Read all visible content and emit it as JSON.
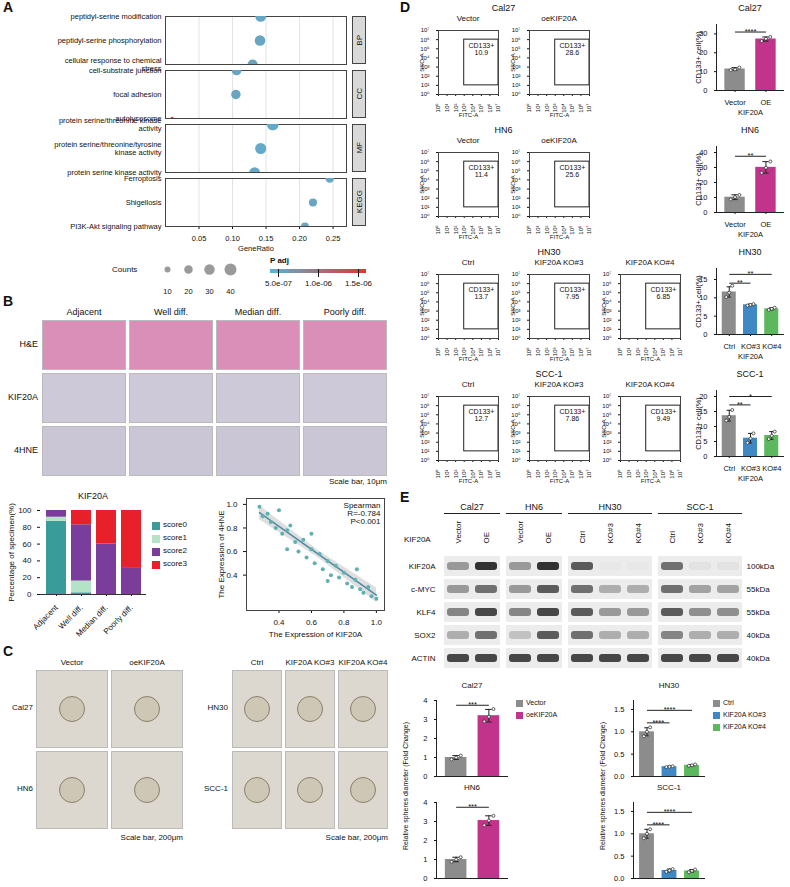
{
  "panel_labels": [
    "A",
    "B",
    "C",
    "D",
    "E"
  ],
  "chart_data": [
    {
      "type": "scatter",
      "xlabel": "GeneRatio",
      "xlim": [
        0,
        0.27
      ],
      "xticks": [
        0.05,
        {
          "value": 0.1,
          "label": "0.10"
        },
        0.15,
        {
          "value": 0.2,
          "label": "0.20"
        },
        0.25
      ],
      "grid": true,
      "groups": [
        {
          "name": "BP",
          "categories": [
            "peptidyl-serine modification",
            "peptidyl-serine phosphorylation",
            "cellular response to chemical stress"
          ],
          "values": [
            0.142,
            0.141,
            0.13
          ],
          "counts": [
            32,
            31,
            29
          ],
          "p_adj": [
            5.2e-07,
            5.3e-07,
            5.6e-07
          ]
        },
        {
          "name": "CC",
          "categories": [
            "cell-substrate junction",
            "focal adhesion",
            "autolysosome"
          ],
          "values": [
            0.106,
            0.105,
            0.01
          ],
          "counts": [
            26,
            25,
            3
          ],
          "p_adj": [
            5.4e-07,
            5.5e-07,
            1.5e-06
          ]
        },
        {
          "name": "MF",
          "categories": [
            "protein serine/threonine kinase activity",
            "protein serine/threonine/tyrosine kinase activity",
            "protein serine kinase activity"
          ],
          "values": [
            0.16,
            0.142,
            0.133
          ],
          "counts": [
            38,
            34,
            32
          ],
          "p_adj": [
            5e-07,
            5e-07,
            5.1e-07
          ]
        },
        {
          "name": "KEGG",
          "categories": [
            "Ferroptosis",
            "Shigellosis",
            "PI3K-Akt signaling pathway"
          ],
          "values": [
            0.245,
            0.22,
            0.208
          ],
          "counts": [
            20,
            18,
            17
          ],
          "p_adj": [
            5.2e-07,
            5.4e-07,
            5.8e-07
          ]
        }
      ],
      "size_legend": {
        "title": "Counts",
        "values": [
          10,
          20,
          30,
          40
        ]
      },
      "color_legend": {
        "title": "P adj",
        "lim": [
          4e-07,
          1.6e-06
        ],
        "colors": [
          "#58b4d6",
          "#e5352b"
        ],
        "ticks": [
          {
            "value": 5e-07,
            "label": "5.0e-07"
          },
          {
            "value": 1e-06,
            "label": "1.0e-06"
          },
          {
            "value": 1.5e-06,
            "label": "1.5e-06"
          }
        ]
      }
    },
    {
      "type": "bar",
      "stacked": true,
      "title": "KIF20A",
      "ylabel": "Percentage of specimen(%)",
      "categories": [
        "Adjacent",
        "Well diff.",
        "Median diff.",
        "Poorly diff."
      ],
      "series": [
        {
          "name": "score0",
          "color": "#3a9b9b",
          "values": [
            87,
            2,
            0,
            0
          ]
        },
        {
          "name": "score1",
          "color": "#b5e3c8",
          "values": [
            5,
            14,
            0,
            0
          ]
        },
        {
          "name": "score2",
          "color": "#7a3d9c",
          "values": [
            8,
            67,
            60,
            32
          ]
        },
        {
          "name": "score3",
          "color": "#e8202a",
          "values": [
            0,
            17,
            40,
            68
          ]
        }
      ],
      "ylim": [
        0,
        100
      ],
      "yticks": [
        0,
        20,
        40,
        60,
        80,
        100
      ],
      "legend": "right"
    },
    {
      "type": "scatter",
      "xlabel": "The Expression of KIF20A",
      "ylabel": "The Expression of 4HNE",
      "annotation": [
        "Spearman",
        "R=-0.784",
        "P<0.001"
      ],
      "color": "#5fb0b0",
      "x": [
        0.28,
        0.3,
        0.33,
        0.35,
        0.38,
        0.4,
        0.42,
        0.45,
        0.47,
        0.5,
        0.52,
        0.55,
        0.57,
        0.6,
        0.62,
        0.65,
        0.67,
        0.7,
        0.72,
        0.75,
        0.77,
        0.8,
        0.82,
        0.85,
        0.87,
        0.9,
        0.92,
        0.95,
        0.97,
        1.0,
        0.6,
        0.7,
        0.45,
        0.88
      ],
      "y": [
        0.98,
        0.9,
        0.92,
        0.85,
        0.8,
        0.95,
        0.75,
        0.78,
        0.82,
        0.68,
        0.6,
        0.7,
        0.55,
        0.62,
        0.5,
        0.58,
        0.45,
        0.52,
        0.4,
        0.48,
        0.38,
        0.42,
        0.33,
        0.3,
        0.36,
        0.28,
        0.25,
        0.3,
        0.22,
        0.2,
        0.75,
        0.35,
        0.62,
        0.45
      ],
      "fit": {
        "x": [
          0.28,
          0.64,
          1.0
        ],
        "y": [
          0.93,
          0.58,
          0.23
        ],
        "lower": [
          0.87,
          0.55,
          0.17
        ],
        "upper": [
          0.99,
          0.61,
          0.29
        ]
      },
      "xlim": [
        0.2,
        1.05
      ],
      "xticks": [
        0.4,
        0.6,
        0.8,
        {
          "value": 1,
          "label": "1.0"
        }
      ],
      "ylim": [
        0.1,
        1.05
      ],
      "yticks": [
        0.4,
        0.6,
        0.8,
        {
          "value": 1,
          "label": "1.0"
        }
      ]
    },
    {
      "type": "bar",
      "title": "Cal27",
      "ylabel": "Relative spheres diameter (Fold Change)",
      "categories": [
        "Vector",
        "oeKIF20A"
      ],
      "colors": [
        "#8c8c8c",
        "#c2338c"
      ],
      "values": [
        1.0,
        3.2
      ],
      "errors": [
        0.1,
        0.33
      ],
      "points": [
        [
          0.9,
          1.0,
          1.1
        ],
        [
          2.9,
          3.15,
          3.55
        ]
      ],
      "ylim": [
        0,
        4
      ],
      "yticks": [
        0,
        1,
        2,
        3,
        4
      ],
      "annotations": [
        {
          "from": 0,
          "to": 1,
          "y": 3.75,
          "label": "***"
        }
      ],
      "legend": "right",
      "tick_labels": "y"
    },
    {
      "type": "bar",
      "title": "HN6",
      "categories": [
        null,
        null
      ],
      "colors": [
        "#8c8c8c",
        "#c2338c"
      ],
      "values": [
        1.0,
        3.05
      ],
      "errors": [
        0.12,
        0.25
      ],
      "points": [
        [
          0.88,
          1.0,
          1.12
        ],
        [
          2.8,
          3.05,
          3.3
        ]
      ],
      "ylim": [
        0,
        4
      ],
      "yticks": [
        0,
        1,
        2,
        3,
        4
      ],
      "annotations": [
        {
          "from": 0,
          "to": 1,
          "y": 3.75,
          "label": "***"
        }
      ],
      "tick_labels": "y"
    },
    {
      "type": "bar",
      "title": "HN30",
      "ylabel": "Relative spheres diameter (Fold Change)",
      "categories": [
        "Ctrl",
        "KIF20A KO#3",
        "KIF20A KO#4"
      ],
      "colors": [
        "#8c8c8c",
        "#3f88c5",
        "#5cb85c"
      ],
      "values": [
        1.0,
        0.22,
        0.25
      ],
      "errors": [
        0.09,
        0.01,
        0.015
      ],
      "points": [
        [
          0.9,
          1.0,
          1.1
        ],
        [
          0.21,
          0.22,
          0.23
        ],
        [
          0.24,
          0.25,
          0.27
        ]
      ],
      "ylim": [
        0,
        1.7
      ],
      "yticks": [
        {
          "value": 0,
          "label": "0.0"
        },
        0.5,
        {
          "value": 1,
          "label": "1.0"
        },
        1.5
      ],
      "annotations": [
        {
          "from": 0,
          "to": 1,
          "y": 1.2,
          "label": "****"
        },
        {
          "from": 0,
          "to": 2,
          "y": 1.48,
          "label": "****"
        }
      ],
      "legend": "right",
      "tick_labels": "y"
    },
    {
      "type": "bar",
      "title": "SCC-1",
      "categories": [
        null,
        null,
        null
      ],
      "colors": [
        "#8c8c8c",
        "#3f88c5",
        "#5cb85c"
      ],
      "values": [
        1.0,
        0.18,
        0.17
      ],
      "errors": [
        0.1,
        0.03,
        0.03
      ],
      "points": [
        [
          0.9,
          1.0,
          1.1
        ],
        [
          0.15,
          0.18,
          0.21
        ],
        [
          0.14,
          0.17,
          0.2
        ]
      ],
      "ylim": [
        0,
        1.7
      ],
      "yticks": [
        {
          "value": 0,
          "label": "0.0"
        },
        0.5,
        {
          "value": 1,
          "label": "1.0"
        },
        1.5
      ],
      "annotations": [
        {
          "from": 0,
          "to": 1,
          "y": 1.2,
          "label": "****"
        },
        {
          "from": 0,
          "to": 2,
          "y": 1.48,
          "label": "****"
        }
      ],
      "tick_labels": "y"
    },
    {
      "type": "bar",
      "title": "Cal27",
      "ylabel": "CD133+ cell(%)",
      "xlabel": "KIF20A",
      "categories": [
        "Vector",
        "OE"
      ],
      "colors": [
        "#8c8c8c",
        "#c2338c"
      ],
      "values": [
        11.4,
        27.3
      ],
      "errors": [
        0.7,
        1.1
      ],
      "points": [
        [
          10.8,
          11.2,
          12.2
        ],
        [
          26.2,
          27.4,
          28.4
        ]
      ],
      "ylim": [
        0,
        35
      ],
      "yticks": [
        0,
        10,
        20,
        30
      ],
      "annotations": [
        {
          "from": 0,
          "to": 1,
          "y": 31,
          "label": "****"
        }
      ]
    },
    {
      "type": "bar",
      "title": "HN6",
      "ylabel": "CD133+ cell(%)",
      "xlabel": "KIF20A",
      "categories": [
        "Vector",
        "OE"
      ],
      "colors": [
        "#8c8c8c",
        "#c2338c"
      ],
      "values": [
        10.2,
        30.1
      ],
      "errors": [
        1.6,
        3.8
      ],
      "points": [
        [
          8.7,
          10.3,
          11.7
        ],
        [
          26.5,
          29.8,
          34.0
        ]
      ],
      "ylim": [
        0,
        44
      ],
      "yticks": [
        0,
        10,
        20,
        30,
        40
      ],
      "annotations": [
        {
          "from": 0,
          "to": 1,
          "y": 37.5,
          "label": "**"
        }
      ]
    },
    {
      "type": "bar",
      "title": "HN30",
      "ylabel": "CD133+ cell(%)",
      "xlabel": "KIF20A",
      "categories": [
        "Ctrl",
        "KO#3",
        "KO#4"
      ],
      "colors": [
        "#8c8c8c",
        "#3f88c5",
        "#5cb85c"
      ],
      "values": [
        11.6,
        8.1,
        7.0
      ],
      "errors": [
        1.4,
        0.2,
        0.3
      ],
      "points": [
        [
          10.2,
          11.4,
          13.3
        ],
        [
          7.9,
          8.1,
          8.3
        ],
        [
          6.7,
          7.0,
          7.3
        ]
      ],
      "ylim": [
        0,
        18
      ],
      "yticks": [
        0,
        5,
        10,
        15
      ],
      "annotations": [
        {
          "from": 0,
          "to": 1,
          "y": 14,
          "label": "**"
        },
        {
          "from": 0,
          "to": 2,
          "y": 16.4,
          "label": "**"
        }
      ]
    },
    {
      "type": "bar",
      "title": "SCC-1",
      "ylabel": "CD133+ cell(%)",
      "xlabel": "KIF20A",
      "categories": [
        "Ctrl",
        "KO#3",
        "KO#4"
      ],
      "colors": [
        "#8c8c8c",
        "#3f88c5",
        "#5cb85c"
      ],
      "values": [
        13.6,
        6.1,
        7.0
      ],
      "errors": [
        1.8,
        1.6,
        1.3
      ],
      "points": [
        [
          12.0,
          13.2,
          15.5
        ],
        [
          4.6,
          6.0,
          7.7
        ],
        [
          5.8,
          6.9,
          8.3
        ]
      ],
      "ylim": [
        0,
        22
      ],
      "yticks": [
        0,
        5,
        10,
        15,
        20
      ],
      "annotations": [
        {
          "from": 0,
          "to": 1,
          "y": 17.2,
          "label": "**"
        },
        {
          "from": 0,
          "to": 2,
          "y": 20,
          "label": "*"
        }
      ]
    }
  ],
  "flow": {
    "type": "scatter",
    "log": true,
    "xlabel": "FITC-A",
    "ylabel": "SSC-A",
    "gate_label": "CD133+",
    "xlim": [
      1,
      10000000
    ],
    "ylim": [
      1,
      10000000
    ],
    "xticks": [
      {
        "value": 1,
        "label": "10⁰"
      },
      {
        "value": 10,
        "label": "10¹"
      },
      {
        "value": 100,
        "label": "10²"
      },
      {
        "value": 1000,
        "label": "10³"
      },
      {
        "value": 10000,
        "label": "10⁴"
      },
      {
        "value": 100000,
        "label": "10⁵"
      },
      {
        "value": 1000000,
        "label": "10⁶"
      },
      {
        "value": 10000000,
        "label": "10⁷"
      }
    ],
    "yticks": [
      {
        "value": 1,
        "label": "10⁰"
      },
      {
        "value": 10,
        "label": "10¹"
      },
      {
        "value": 100,
        "label": "10²"
      },
      {
        "value": 1000,
        "label": "10³"
      },
      {
        "value": 10000,
        "label": "10⁴"
      },
      {
        "value": 100000,
        "label": "10⁵"
      },
      {
        "value": 1000000,
        "label": "10⁶"
      },
      {
        "value": 10000000,
        "label": "10⁷"
      }
    ],
    "gate": {
      "x": [
        1000,
        10000000
      ],
      "y": [
        10,
        1000000
      ]
    },
    "rows": [
      {
        "cell_line": "Cal27",
        "conditions": [
          "Vector",
          "oeKIF20A"
        ],
        "values": [
          10.9,
          28.6
        ]
      },
      {
        "cell_line": "HN6",
        "conditions": [
          "Vector",
          "oeKIF20A"
        ],
        "values": [
          11.4,
          25.6
        ]
      },
      {
        "cell_line": "HN30",
        "conditions": [
          "Ctrl",
          "KIF20A KO#3",
          "KIF20A KO#4"
        ],
        "values": [
          13.7,
          7.95,
          6.85
        ]
      },
      {
        "cell_line": "SCC-1",
        "conditions": [
          "Ctrl",
          "KIF20A KO#3",
          "KIF20A KO#4"
        ],
        "values": [
          12.7,
          7.86,
          9.49
        ]
      }
    ]
  },
  "images": {
    "B": {
      "columns": [
        "Adjacent",
        "Well diff.",
        "Median diff.",
        "Poorly diff."
      ],
      "rows": [
        "H&E",
        "KIF20A",
        "4HNE"
      ],
      "scale_bar": "Scale bar, 10μm"
    },
    "C": {
      "left": {
        "columns": [
          "Vector",
          "oeKIF20A"
        ],
        "rows": [
          "Cal27",
          "HN6"
        ]
      },
      "right": {
        "columns": [
          "Ctrl",
          "KIF20A KO#3",
          "KIF20A KO#4"
        ],
        "rows": [
          "HN30",
          "SCC-1"
        ]
      },
      "scale_bar": "Scale bar, 200μm"
    }
  },
  "blot": {
    "title": "KIF20A",
    "groups": [
      {
        "name": "Cal27",
        "lanes": [
          "Vector",
          "OE"
        ]
      },
      {
        "name": "HN6",
        "lanes": [
          "Vector",
          "OE"
        ]
      },
      {
        "name": "HN30",
        "lanes": [
          "Ctrl",
          "KO#3",
          "KO#4"
        ]
      },
      {
        "name": "SCC-1",
        "lanes": [
          "Ctrl",
          "KO#3",
          "KO#4"
        ]
      }
    ],
    "rows": [
      {
        "name": "KIF20A",
        "size": "100kDa",
        "intensity": [
          0.4,
          0.9,
          0.4,
          0.9,
          0.7,
          0.02,
          0.02,
          0.6,
          0.05,
          0.05
        ]
      },
      {
        "name": "c-MYC",
        "size": "55kDa",
        "intensity": [
          0.4,
          0.6,
          0.4,
          0.7,
          0.6,
          0.3,
          0.3,
          0.6,
          0.35,
          0.35
        ]
      },
      {
        "name": "KLF4",
        "size": "55kDa",
        "intensity": [
          0.5,
          0.8,
          0.5,
          0.8,
          0.7,
          0.4,
          0.4,
          0.7,
          0.45,
          0.45
        ]
      },
      {
        "name": "SOX2",
        "size": "40kDa",
        "intensity": [
          0.3,
          0.6,
          0.2,
          0.7,
          0.6,
          0.3,
          0.3,
          0.5,
          0.3,
          0.3
        ]
      },
      {
        "name": "ACTIN",
        "size": "40kDa",
        "intensity": [
          0.8,
          0.8,
          0.8,
          0.8,
          0.8,
          0.8,
          0.8,
          0.8,
          0.8,
          0.8
        ]
      }
    ]
  }
}
